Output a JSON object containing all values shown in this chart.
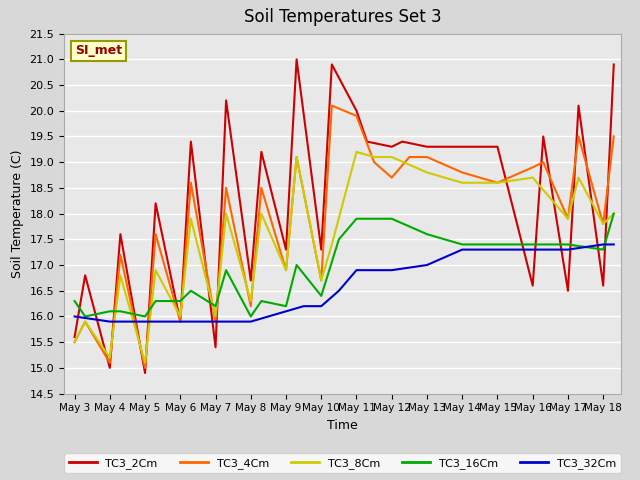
{
  "title": "Soil Temperatures Set 3",
  "xlabel": "Time",
  "ylabel": "Soil Temperature (C)",
  "ylim": [
    14.5,
    21.5
  ],
  "plot_bg_color": "#e8e8e8",
  "fig_bg_color": "#d8d8d8",
  "annotation_text": "SI_met",
  "annotation_bg": "#ffffcc",
  "annotation_fg": "#990000",
  "x_labels": [
    "May 3",
    "May 4",
    "May 5",
    "May 6",
    "May 7",
    "May 8",
    "May 9",
    "May 10",
    "May 11",
    "May 12",
    "May 13",
    "May 14",
    "May 15",
    "May 16",
    "May 17",
    "May 18"
  ],
  "series": {
    "TC3_2Cm": {
      "color": "#cc0000",
      "x": [
        0,
        0.3,
        1,
        1.3,
        2,
        2.3,
        3,
        3.3,
        4,
        4.3,
        5,
        5.3,
        6,
        6.3,
        7,
        7.3,
        8,
        8.3,
        9,
        9.3,
        10,
        11,
        12,
        13,
        13.3,
        14,
        14.3,
        15,
        15.3
      ],
      "y": [
        15.6,
        16.8,
        15.0,
        17.6,
        14.9,
        18.2,
        15.9,
        19.4,
        15.4,
        20.2,
        16.7,
        19.2,
        17.3,
        21.0,
        17.3,
        20.9,
        20.0,
        19.4,
        19.3,
        19.4,
        19.3,
        19.3,
        19.3,
        16.6,
        19.5,
        16.5,
        20.1,
        16.6,
        20.9
      ]
    },
    "TC3_4Cm": {
      "color": "#ff6600",
      "x": [
        0,
        0.3,
        1,
        1.3,
        2,
        2.3,
        3,
        3.3,
        4,
        4.3,
        5,
        5.3,
        6,
        6.3,
        7,
        7.3,
        8,
        8.5,
        9,
        9.5,
        10,
        11,
        12,
        13,
        13.3,
        14,
        14.3,
        15,
        15.3
      ],
      "y": [
        15.5,
        15.9,
        15.1,
        17.2,
        15.0,
        17.6,
        15.9,
        18.6,
        15.9,
        18.5,
        16.2,
        18.5,
        16.9,
        19.1,
        16.7,
        20.1,
        19.9,
        19.0,
        18.7,
        19.1,
        19.1,
        18.8,
        18.6,
        18.9,
        19.0,
        17.9,
        19.5,
        17.8,
        19.5
      ]
    },
    "TC3_8Cm": {
      "color": "#cccc00",
      "x": [
        0,
        0.3,
        1,
        1.3,
        2,
        2.3,
        3,
        3.3,
        4,
        4.3,
        5,
        5.3,
        6,
        6.3,
        7,
        7.3,
        8,
        8.5,
        9,
        10,
        11,
        12,
        13,
        14,
        14.3,
        15,
        15.3
      ],
      "y": [
        15.5,
        15.9,
        15.2,
        16.8,
        15.1,
        16.9,
        16.0,
        17.9,
        16.0,
        18.0,
        16.3,
        18.0,
        16.9,
        19.1,
        16.7,
        17.4,
        19.2,
        19.1,
        19.1,
        18.8,
        18.6,
        18.6,
        18.7,
        17.9,
        18.7,
        17.8,
        18.0
      ]
    },
    "TC3_16Cm": {
      "color": "#00aa00",
      "x": [
        0,
        0.3,
        1,
        1.3,
        2,
        2.3,
        3,
        3.3,
        4,
        4.3,
        5,
        5.3,
        6,
        6.3,
        7,
        7.5,
        8,
        9,
        10,
        11,
        12,
        13,
        14,
        15,
        15.3
      ],
      "y": [
        16.3,
        16.0,
        16.1,
        16.1,
        16.0,
        16.3,
        16.3,
        16.5,
        16.2,
        16.9,
        16.0,
        16.3,
        16.2,
        17.0,
        16.4,
        17.5,
        17.9,
        17.9,
        17.6,
        17.4,
        17.4,
        17.4,
        17.4,
        17.3,
        18.0
      ]
    },
    "TC3_32Cm": {
      "color": "#0000cc",
      "x": [
        0,
        1,
        2,
        3,
        4,
        5,
        6,
        6.5,
        7,
        7.5,
        8,
        8.5,
        9,
        10,
        11,
        12,
        13,
        14,
        15,
        15.3
      ],
      "y": [
        16.0,
        15.9,
        15.9,
        15.9,
        15.9,
        15.9,
        16.1,
        16.2,
        16.2,
        16.5,
        16.9,
        16.9,
        16.9,
        17.0,
        17.3,
        17.3,
        17.3,
        17.3,
        17.4,
        17.4
      ]
    }
  }
}
